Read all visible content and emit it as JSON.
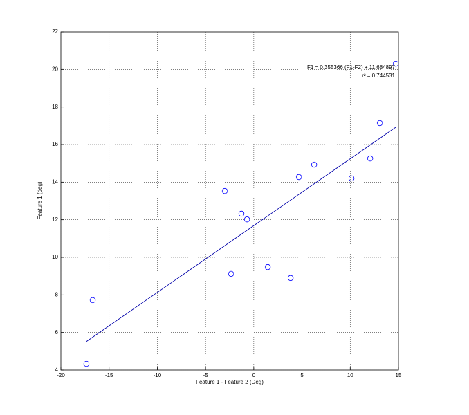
{
  "chart_data": {
    "type": "scatter",
    "xlabel": "Feature 1 - Feature 2 (Deg)",
    "ylabel": "Feature 1 (deg)",
    "annotations": [
      "F1 = 0.355366 (F1-F2) + 11.684897",
      "r² = 0.744531"
    ],
    "xlim": [
      -20,
      15
    ],
    "xticks": [
      -20,
      -15,
      -10,
      -5,
      0,
      5,
      10,
      15
    ],
    "ylim": [
      4,
      22
    ],
    "yticks": [
      4,
      6,
      8,
      10,
      12,
      14,
      16,
      18,
      20,
      22
    ],
    "grid": true,
    "series": [
      {
        "type": "scatter",
        "color": "#0000ff",
        "x": [
          -17.35,
          -16.7,
          -3.0,
          -2.35,
          -1.28,
          -0.7,
          1.45,
          3.82,
          4.68,
          6.26,
          10.13,
          12.07,
          13.07,
          14.72
        ],
        "values": [
          4.33,
          7.72,
          13.53,
          9.12,
          12.32,
          12.02,
          9.48,
          8.9,
          14.27,
          14.93,
          14.2,
          15.26,
          17.14,
          20.3
        ]
      },
      {
        "type": "line",
        "color": "#0000aa",
        "x": [
          -17.35,
          14.72
        ],
        "values": [
          5.52,
          16.92
        ]
      }
    ]
  }
}
